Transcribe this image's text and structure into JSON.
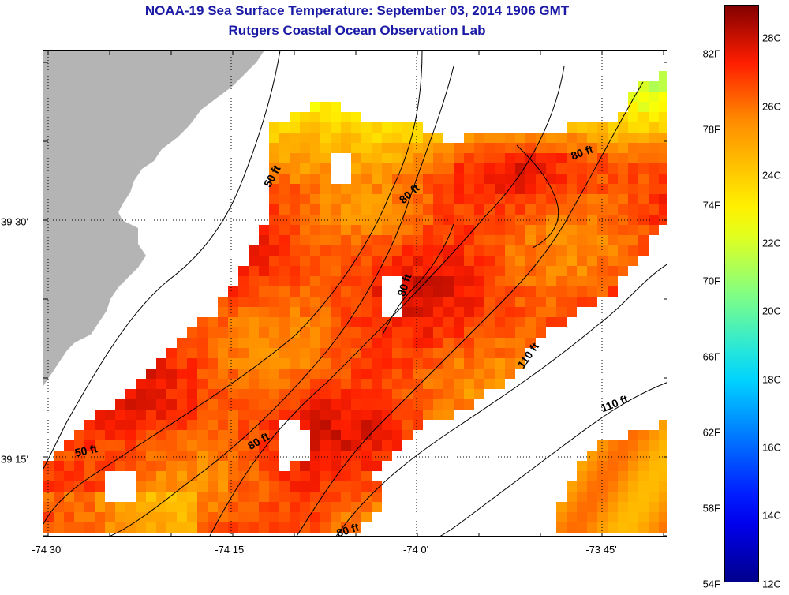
{
  "header": {
    "title": "NOAA-19 Sea Surface Temperature:  September 03, 2014 1906 GMT",
    "subtitle": "Rutgers Coastal Ocean Observation Lab"
  },
  "axes": {
    "x_labels": [
      "-74 30'",
      "-74 15'",
      "-74 0'",
      "-73 45'"
    ],
    "y_labels": [
      "39 30'",
      "39 15'"
    ]
  },
  "colorbar": {
    "fahrenheit_labels": [
      "82F",
      "78F",
      "74F",
      "70F",
      "66F",
      "62F",
      "58F",
      "54F"
    ],
    "celsius_labels": [
      "28C",
      "26C",
      "24C",
      "22C",
      "20C",
      "18C",
      "16C",
      "14C",
      "12C"
    ],
    "min_c": 12,
    "max_c": 29.4
  },
  "depth_labels": [
    "50 ft",
    "80 ft",
    "80 ft",
    "80 ft",
    "110 ft",
    "110 ft",
    "80 ft",
    "50 ft",
    "80 ft"
  ],
  "colors": {
    "title": "#1a1aa6",
    "land": "#b4b4b4",
    "no_data": "#ffffff",
    "contour": "#000000"
  }
}
